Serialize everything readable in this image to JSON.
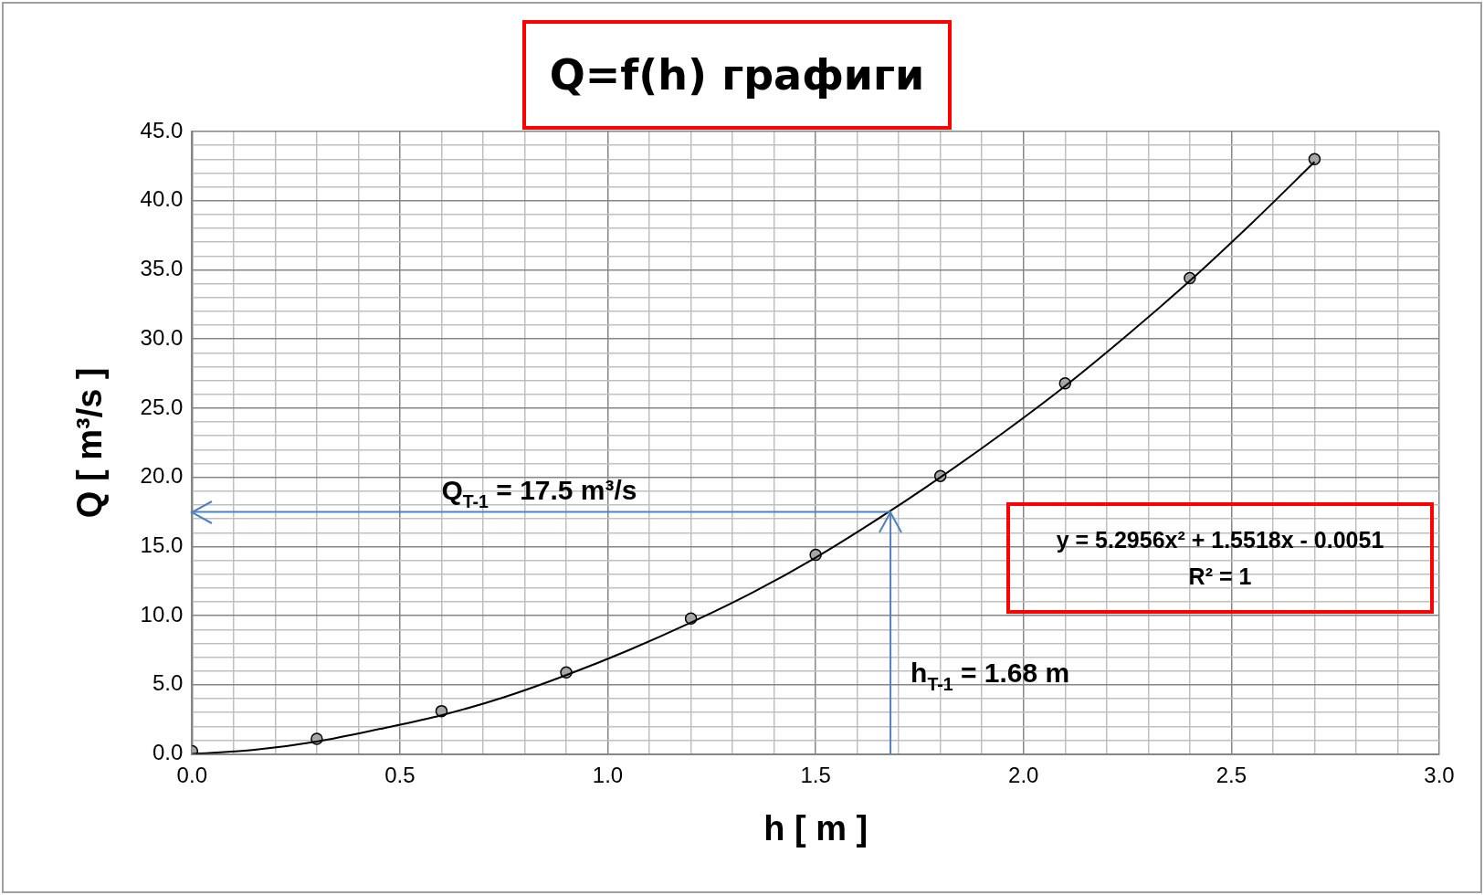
{
  "chart_data": {
    "type": "scatter",
    "title": "Q=f(h) графиги",
    "xlabel": "h [ m ]",
    "ylabel": "Q [ m³/s ]",
    "xlim": [
      0,
      3
    ],
    "ylim": [
      0,
      45
    ],
    "xticks": [
      {
        "value": 0,
        "label": "0.0"
      },
      {
        "value": 0.1,
        "label": null
      },
      {
        "value": 0.2,
        "label": null
      },
      {
        "value": 0.3,
        "label": null
      },
      {
        "value": 0.4,
        "label": null
      },
      {
        "value": 0.5,
        "label": "0.5"
      },
      {
        "value": 0.6,
        "label": null
      },
      {
        "value": 0.7,
        "label": null
      },
      {
        "value": 0.8,
        "label": null
      },
      {
        "value": 0.9,
        "label": null
      },
      {
        "value": 1,
        "label": "1.0"
      },
      {
        "value": 1.1,
        "label": null
      },
      {
        "value": 1.2,
        "label": null
      },
      {
        "value": 1.3,
        "label": null
      },
      {
        "value": 1.4,
        "label": null
      },
      {
        "value": 1.5,
        "label": "1.5"
      },
      {
        "value": 1.6,
        "label": null
      },
      {
        "value": 1.7,
        "label": null
      },
      {
        "value": 1.8,
        "label": null
      },
      {
        "value": 1.9,
        "label": null
      },
      {
        "value": 2,
        "label": "2.0"
      },
      {
        "value": 2.1,
        "label": null
      },
      {
        "value": 2.2,
        "label": null
      },
      {
        "value": 2.3,
        "label": null
      },
      {
        "value": 2.4,
        "label": null
      },
      {
        "value": 2.5,
        "label": "2.5"
      },
      {
        "value": 2.6,
        "label": null
      },
      {
        "value": 2.7,
        "label": null
      },
      {
        "value": 2.8,
        "label": null
      },
      {
        "value": 2.9,
        "label": null
      },
      {
        "value": 3,
        "label": "3.0"
      }
    ],
    "yticks": [
      {
        "value": 0,
        "label": "0.0"
      },
      {
        "value": 1,
        "label": null
      },
      {
        "value": 2,
        "label": null
      },
      {
        "value": 3,
        "label": null
      },
      {
        "value": 4,
        "label": null
      },
      {
        "value": 5,
        "label": "5.0"
      },
      {
        "value": 6,
        "label": null
      },
      {
        "value": 7,
        "label": null
      },
      {
        "value": 8,
        "label": null
      },
      {
        "value": 9,
        "label": null
      },
      {
        "value": 10,
        "label": "10.0"
      },
      {
        "value": 11,
        "label": null
      },
      {
        "value": 12,
        "label": null
      },
      {
        "value": 13,
        "label": null
      },
      {
        "value": 14,
        "label": null
      },
      {
        "value": 15,
        "label": "15.0"
      },
      {
        "value": 16,
        "label": null
      },
      {
        "value": 17,
        "label": null
      },
      {
        "value": 18,
        "label": null
      },
      {
        "value": 19,
        "label": null
      },
      {
        "value": 20,
        "label": "20.0"
      },
      {
        "value": 21,
        "label": null
      },
      {
        "value": 22,
        "label": null
      },
      {
        "value": 23,
        "label": null
      },
      {
        "value": 24,
        "label": null
      },
      {
        "value": 25,
        "label": "25.0"
      },
      {
        "value": 26,
        "label": null
      },
      {
        "value": 27,
        "label": null
      },
      {
        "value": 28,
        "label": null
      },
      {
        "value": 29,
        "label": null
      },
      {
        "value": 30,
        "label": "30.0"
      },
      {
        "value": 31,
        "label": null
      },
      {
        "value": 32,
        "label": null
      },
      {
        "value": 33,
        "label": null
      },
      {
        "value": 34,
        "label": null
      },
      {
        "value": 35,
        "label": "35.0"
      },
      {
        "value": 36,
        "label": null
      },
      {
        "value": 37,
        "label": null
      },
      {
        "value": 38,
        "label": null
      },
      {
        "value": 39,
        "label": null
      },
      {
        "value": 40,
        "label": "40.0"
      },
      {
        "value": 41,
        "label": null
      },
      {
        "value": 42,
        "label": null
      },
      {
        "value": 43,
        "label": null
      },
      {
        "value": 44,
        "label": null
      },
      {
        "value": 45,
        "label": "45.0"
      }
    ],
    "grid": true,
    "legend": false,
    "series": [
      {
        "type": "line",
        "color": "#000000",
        "marker": "none",
        "x": [
          0,
          0.15,
          0.3,
          0.45,
          0.6,
          0.75,
          0.9,
          1.05,
          1.2,
          1.35,
          1.5,
          1.65,
          1.8,
          1.95,
          2.1,
          2.25,
          2.4,
          2.55,
          2.7
        ],
        "values": [
          0,
          0.3,
          0.9,
          1.8,
          2.8,
          4.1,
          5.7,
          7.5,
          9.5,
          11.7,
          14.2,
          17.0,
          20.0,
          23.2,
          26.6,
          30.3,
          34.2,
          38.4,
          42.8
        ]
      },
      {
        "color": "#a6a6a6",
        "marker": "circle",
        "x": [
          0,
          0.3,
          0.6,
          0.9,
          1.2,
          1.5,
          1.8,
          2.1,
          2.4,
          2.7
        ],
        "values": [
          0.2,
          1.1,
          3.1,
          5.9,
          9.8,
          14.4,
          20.1,
          26.8,
          34.4,
          43.0
        ]
      }
    ],
    "ref_lines": [
      {
        "axis": "y",
        "value": 17.5,
        "label": "Q$_{T-1}$ = 17.5 m³/s",
        "color": "#4f81bd"
      },
      {
        "axis": "x",
        "value": 1.68,
        "label": "h$_{T-1}$ = 1.68 m",
        "color": "#4f81bd"
      }
    ],
    "annotations": [
      "y = 5.2956x² + 1.5518x - 0.0051",
      "R² = 1"
    ]
  }
}
